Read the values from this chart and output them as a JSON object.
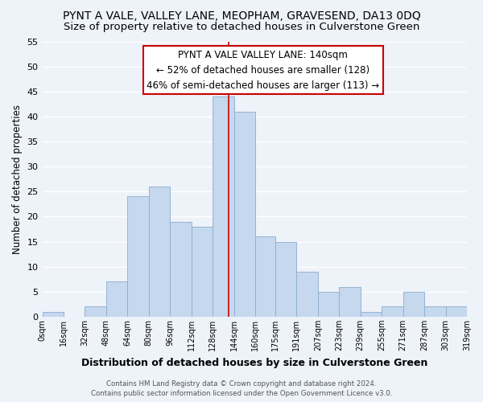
{
  "title": "PYNT A VALE, VALLEY LANE, MEOPHAM, GRAVESEND, DA13 0DQ",
  "subtitle": "Size of property relative to detached houses in Culverstone Green",
  "xlabel": "Distribution of detached houses by size in Culverstone Green",
  "ylabel": "Number of detached properties",
  "bin_edges": [
    0,
    16,
    32,
    48,
    64,
    80,
    96,
    112,
    128,
    144,
    160,
    175,
    191,
    207,
    223,
    239,
    255,
    271,
    287,
    303,
    319
  ],
  "bar_heights": [
    1,
    0,
    2,
    7,
    24,
    26,
    19,
    18,
    44,
    41,
    16,
    15,
    9,
    5,
    6,
    1,
    2,
    5,
    2,
    2
  ],
  "bar_color": "#c5d8ee",
  "bar_edge_color": "#8aadcc",
  "marker_value": 140,
  "marker_color": "#cc0000",
  "ylim": [
    0,
    55
  ],
  "yticks": [
    0,
    5,
    10,
    15,
    20,
    25,
    30,
    35,
    40,
    45,
    50,
    55
  ],
  "xtick_labels": [
    "0sqm",
    "16sqm",
    "32sqm",
    "48sqm",
    "64sqm",
    "80sqm",
    "96sqm",
    "112sqm",
    "128sqm",
    "144sqm",
    "160sqm",
    "175sqm",
    "191sqm",
    "207sqm",
    "223sqm",
    "239sqm",
    "255sqm",
    "271sqm",
    "287sqm",
    "303sqm",
    "319sqm"
  ],
  "annotation_title": "PYNT A VALE VALLEY LANE: 140sqm",
  "annotation_line1": "← 52% of detached houses are smaller (128)",
  "annotation_line2": "46% of semi-detached houses are larger (113) →",
  "footer_line1": "Contains HM Land Registry data © Crown copyright and database right 2024.",
  "footer_line2": "Contains public sector information licensed under the Open Government Licence v3.0.",
  "background_color": "#eef2f9",
  "grid_color": "#ffffff",
  "title_fontsize": 10,
  "subtitle_fontsize": 9.5
}
